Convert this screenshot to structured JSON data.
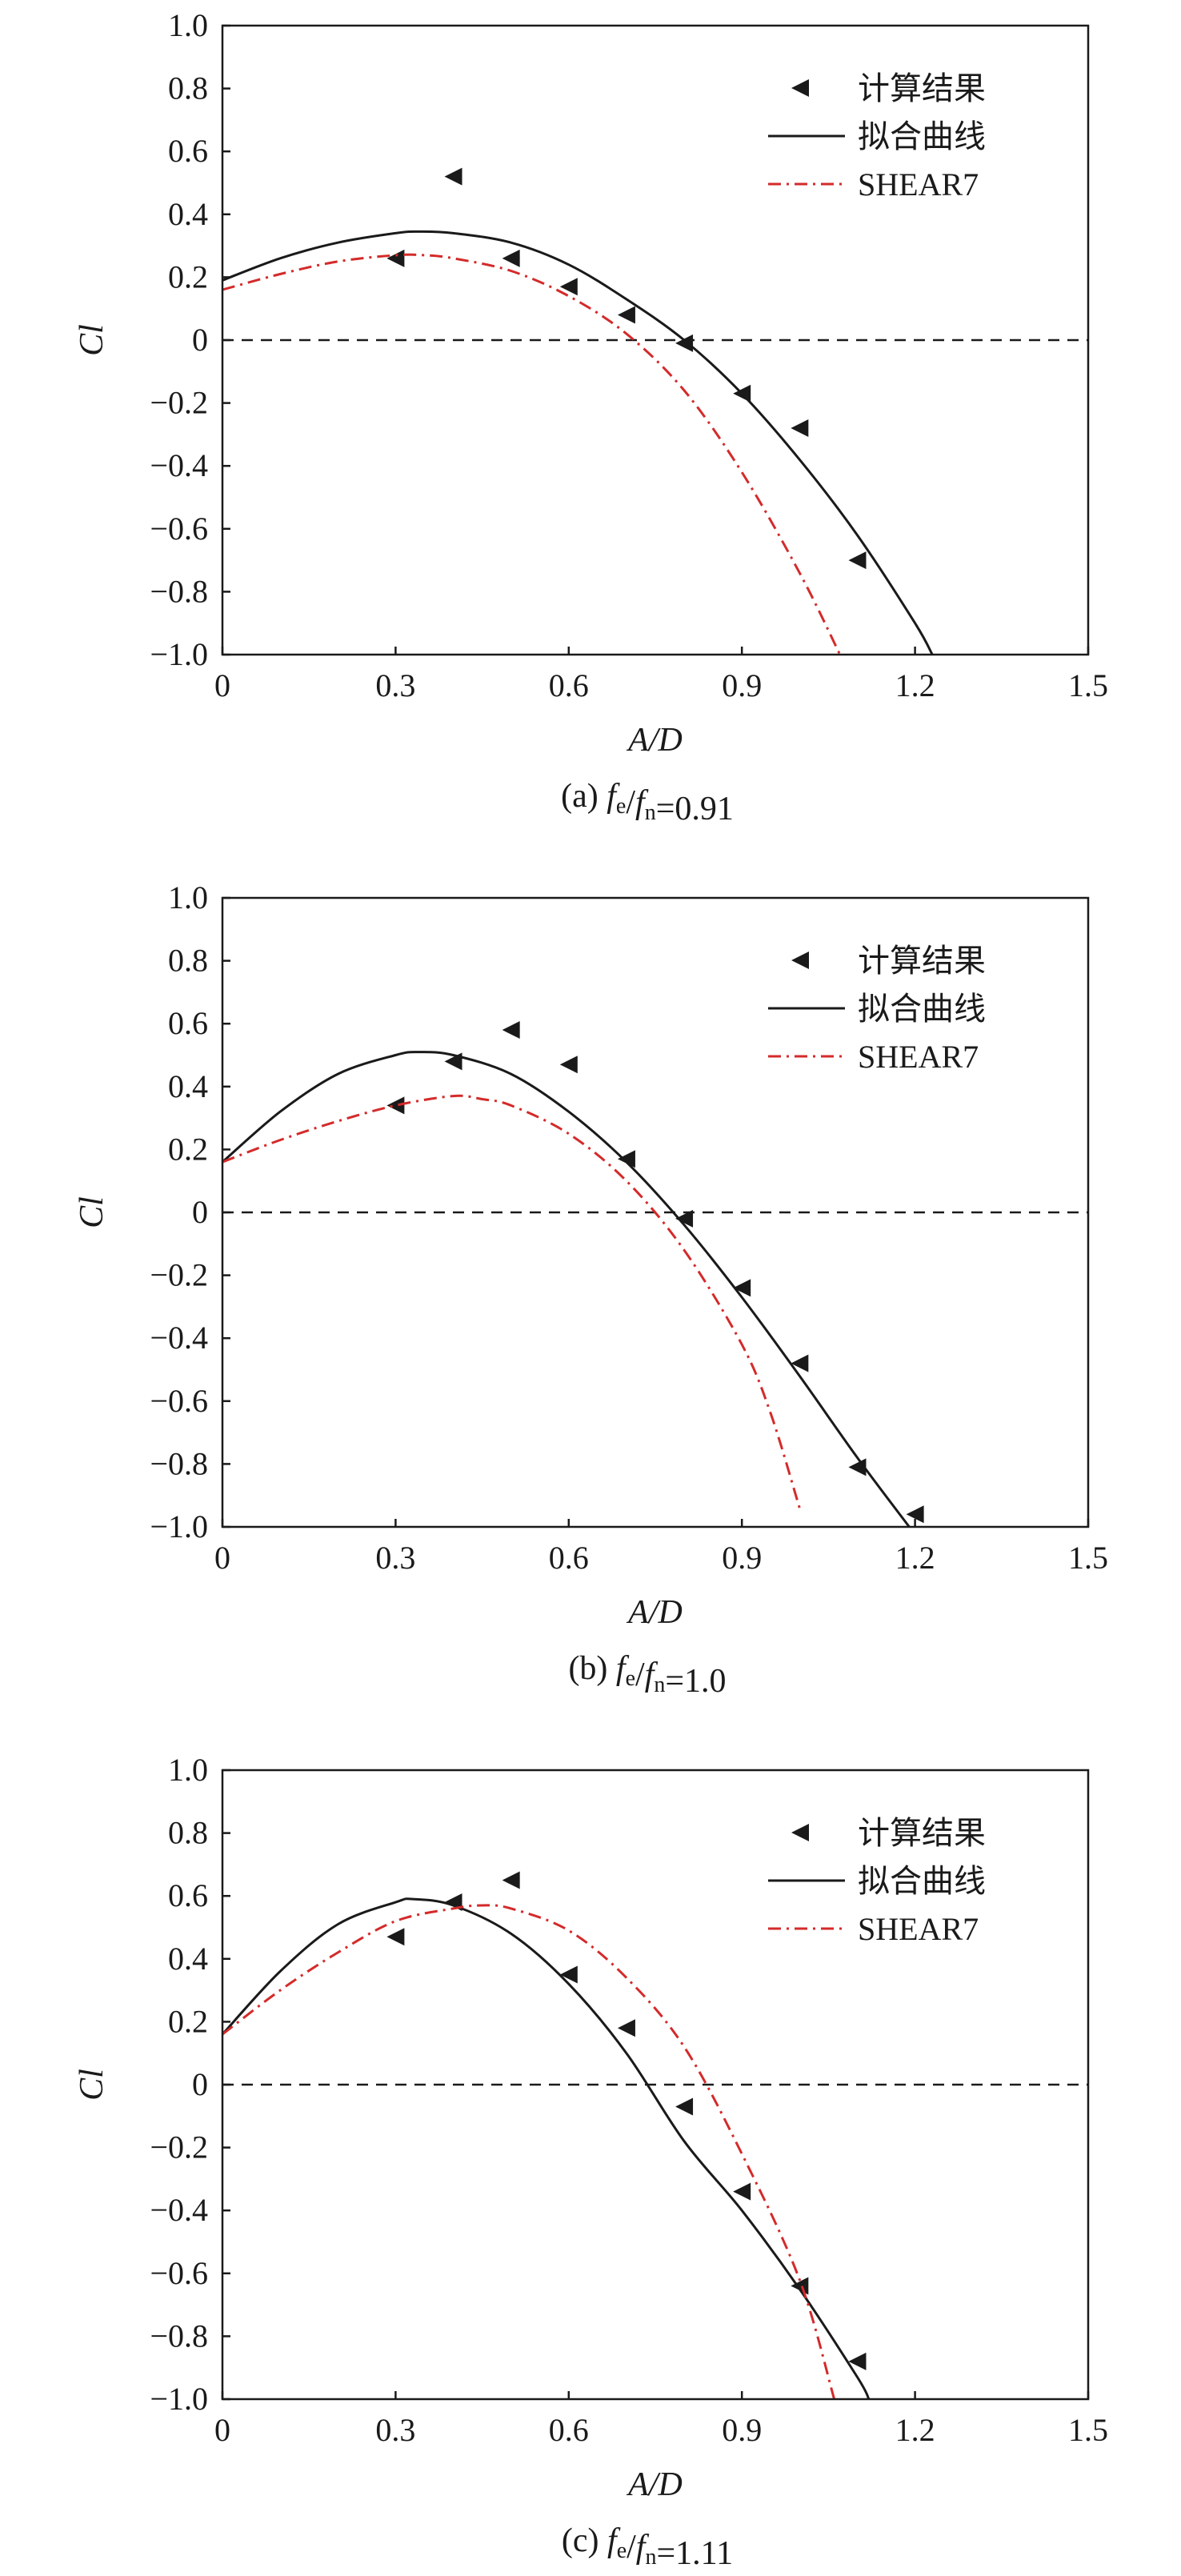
{
  "chart_data": [
    {
      "type": "scatter",
      "panel_label": "(a)",
      "caption": {
        "prefix": "(a) ",
        "f1": "f",
        "s1": "e",
        "slash": "/",
        "f2": "f",
        "s2": "n",
        "value": "=0.91"
      },
      "xlabel": "A/D",
      "ylabel": "Cl",
      "xlim": [
        0,
        1.5
      ],
      "ylim": [
        -1.0,
        1.0
      ],
      "x_ticks": [
        "0",
        "0.3",
        "0.6",
        "0.9",
        "1.2",
        "1.5"
      ],
      "y_ticks": [
        "1.0",
        "0.8",
        "0.6",
        "0.4",
        "0.2",
        "0",
        "−0.2",
        "−0.4",
        "−0.6",
        "−0.8",
        "−1.0"
      ],
      "zero_line": true,
      "legend": {
        "position": "top-right",
        "entries": [
          "计算结果",
          "拟合曲线",
          "SHEAR7"
        ]
      },
      "series": [
        {
          "name": "计算结果",
          "kind": "markers",
          "color": "#1a1a1a",
          "x": [
            0.3,
            0.4,
            0.5,
            0.6,
            0.7,
            0.8,
            0.9,
            1.0,
            1.1
          ],
          "y": [
            0.26,
            0.52,
            0.26,
            0.17,
            0.08,
            -0.01,
            -0.17,
            -0.28,
            -0.7
          ]
        },
        {
          "name": "拟合曲线",
          "kind": "solid",
          "color": "#1a1a1a",
          "x": [
            0,
            0.1,
            0.2,
            0.3,
            0.34,
            0.4,
            0.5,
            0.6,
            0.7,
            0.8,
            0.9,
            1.0,
            1.1,
            1.2,
            1.23
          ],
          "y": [
            0.19,
            0.26,
            0.31,
            0.34,
            0.345,
            0.34,
            0.31,
            0.24,
            0.13,
            0.0,
            -0.17,
            -0.38,
            -0.62,
            -0.9,
            -1.0
          ]
        },
        {
          "name": "SHEAR7",
          "kind": "dashdot",
          "color": "#d42a2a",
          "x": [
            0,
            0.1,
            0.2,
            0.3,
            0.35,
            0.4,
            0.5,
            0.6,
            0.7,
            0.8,
            0.9,
            1.0,
            1.07
          ],
          "y": [
            0.16,
            0.21,
            0.25,
            0.27,
            0.27,
            0.26,
            0.22,
            0.14,
            0.02,
            -0.16,
            -0.42,
            -0.74,
            -1.0
          ]
        }
      ]
    },
    {
      "type": "scatter",
      "panel_label": "(b)",
      "caption": {
        "prefix": "(b) ",
        "f1": "f",
        "s1": "e",
        "slash": "/",
        "f2": "f",
        "s2": "n",
        "value": "=1.0"
      },
      "xlabel": "A/D",
      "ylabel": "Cl",
      "xlim": [
        0,
        1.5
      ],
      "ylim": [
        -1.0,
        1.0
      ],
      "x_ticks": [
        "0",
        "0.3",
        "0.6",
        "0.9",
        "1.2",
        "1.5"
      ],
      "y_ticks": [
        "1.0",
        "0.8",
        "0.6",
        "0.4",
        "0.2",
        "0",
        "−0.2",
        "−0.4",
        "−0.6",
        "−0.8",
        "−1.0"
      ],
      "zero_line": true,
      "legend": {
        "position": "top-right",
        "entries": [
          "计算结果",
          "拟合曲线",
          "SHEAR7"
        ]
      },
      "series": [
        {
          "name": "计算结果",
          "kind": "markers",
          "color": "#1a1a1a",
          "x": [
            0.3,
            0.4,
            0.5,
            0.6,
            0.7,
            0.8,
            0.9,
            1.0,
            1.1,
            1.2
          ],
          "y": [
            0.34,
            0.48,
            0.58,
            0.47,
            0.17,
            -0.02,
            -0.24,
            -0.48,
            -0.81,
            -0.96
          ]
        },
        {
          "name": "拟合曲线",
          "kind": "solid",
          "color": "#1a1a1a",
          "x": [
            0,
            0.1,
            0.2,
            0.3,
            0.34,
            0.4,
            0.5,
            0.6,
            0.7,
            0.8,
            0.9,
            1.0,
            1.1,
            1.19
          ],
          "y": [
            0.16,
            0.32,
            0.44,
            0.5,
            0.51,
            0.5,
            0.44,
            0.32,
            0.16,
            -0.04,
            -0.27,
            -0.52,
            -0.78,
            -1.0
          ]
        },
        {
          "name": "SHEAR7",
          "kind": "dashdot",
          "color": "#d42a2a",
          "x": [
            0,
            0.1,
            0.2,
            0.3,
            0.4,
            0.45,
            0.5,
            0.6,
            0.7,
            0.8,
            0.9,
            0.95,
            1.0
          ],
          "y": [
            0.16,
            0.23,
            0.29,
            0.34,
            0.37,
            0.36,
            0.34,
            0.25,
            0.1,
            -0.12,
            -0.42,
            -0.64,
            -0.94
          ]
        }
      ]
    },
    {
      "type": "scatter",
      "panel_label": "(c)",
      "caption": {
        "prefix": "(c) ",
        "f1": "f",
        "s1": "e",
        "slash": "/",
        "f2": "f",
        "s2": "n",
        "value": "=1.11"
      },
      "xlabel": "A/D",
      "ylabel": "Cl",
      "xlim": [
        0,
        1.5
      ],
      "ylim": [
        -1.0,
        1.0
      ],
      "x_ticks": [
        "0",
        "0.3",
        "0.6",
        "0.9",
        "1.2",
        "1.5"
      ],
      "y_ticks": [
        "1.0",
        "0.8",
        "0.6",
        "0.4",
        "0.2",
        "0",
        "−0.2",
        "−0.4",
        "−0.6",
        "−0.8",
        "−1.0"
      ],
      "zero_line": true,
      "legend": {
        "position": "top-right",
        "entries": [
          "计算结果",
          "拟合曲线",
          "SHEAR7"
        ]
      },
      "series": [
        {
          "name": "计算结果",
          "kind": "markers",
          "color": "#1a1a1a",
          "x": [
            0.3,
            0.4,
            0.5,
            0.6,
            0.7,
            0.8,
            0.9,
            1.0,
            1.1
          ],
          "y": [
            0.47,
            0.58,
            0.65,
            0.35,
            0.18,
            -0.07,
            -0.34,
            -0.64,
            -0.88
          ]
        },
        {
          "name": "拟合曲线",
          "kind": "solid",
          "color": "#1a1a1a",
          "x": [
            0,
            0.1,
            0.2,
            0.3,
            0.33,
            0.4,
            0.5,
            0.6,
            0.7,
            0.8,
            0.9,
            1.0,
            1.1,
            1.12
          ],
          "y": [
            0.16,
            0.36,
            0.51,
            0.58,
            0.59,
            0.57,
            0.48,
            0.32,
            0.1,
            -0.18,
            -0.4,
            -0.65,
            -0.93,
            -1.0
          ]
        },
        {
          "name": "SHEAR7",
          "kind": "dashdot",
          "color": "#d42a2a",
          "x": [
            0,
            0.1,
            0.2,
            0.3,
            0.4,
            0.45,
            0.5,
            0.6,
            0.7,
            0.8,
            0.9,
            1.0,
            1.06
          ],
          "y": [
            0.16,
            0.3,
            0.42,
            0.52,
            0.56,
            0.57,
            0.56,
            0.49,
            0.34,
            0.12,
            -0.22,
            -0.62,
            -1.0
          ]
        }
      ]
    }
  ]
}
